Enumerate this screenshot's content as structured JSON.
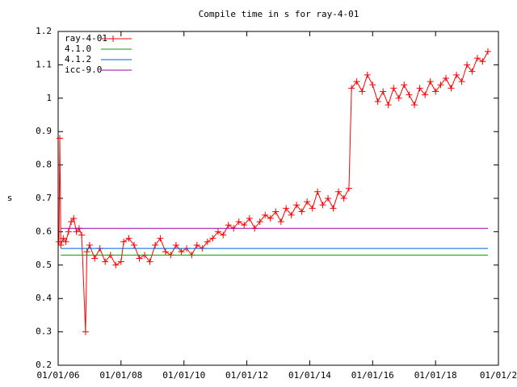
{
  "chart_data": {
    "type": "line",
    "title": "Compile time in s for ray-4-01",
    "y_label": "s",
    "xlim": [
      "2006-01-01",
      "2020-01-01"
    ],
    "xticks": [
      {
        "value": "2006-01-01",
        "label": "01/01/06"
      },
      {
        "value": "2008-01-01",
        "label": "01/01/08"
      },
      {
        "value": "2010-01-01",
        "label": "01/01/10"
      },
      {
        "value": "2012-01-01",
        "label": "01/01/12"
      },
      {
        "value": "2014-01-01",
        "label": "01/01/14"
      },
      {
        "value": "2016-01-01",
        "label": "01/01/16"
      },
      {
        "value": "2018-01-01",
        "label": "01/01/18"
      },
      {
        "value": "2020-01-01",
        "label": "01/01/2"
      }
    ],
    "ylim": [
      0.2,
      1.2
    ],
    "yticks": [
      0.2,
      0.3,
      0.4,
      0.5,
      0.6,
      0.7,
      0.8,
      0.9,
      1,
      1.1,
      1.2
    ],
    "legend": "top-left",
    "series": [
      {
        "name": "ray-4-01",
        "color": "#ff0000",
        "markers": true,
        "x": [
          "2006-01-10",
          "2006-01-20",
          "2006-02-01",
          "2006-03-01",
          "2006-04-01",
          "2006-05-01",
          "2006-06-01",
          "2006-07-01",
          "2006-08-01",
          "2006-09-01",
          "2006-10-01",
          "2006-11-15",
          "2006-12-01",
          "2007-01-01",
          "2007-03-01",
          "2007-05-01",
          "2007-07-01",
          "2007-09-01",
          "2007-11-01",
          "2008-01-01",
          "2008-02-01",
          "2008-04-01",
          "2008-06-01",
          "2008-08-01",
          "2008-10-01",
          "2008-12-01",
          "2009-02-01",
          "2009-04-01",
          "2009-06-01",
          "2009-08-01",
          "2009-10-01",
          "2009-12-01",
          "2010-02-01",
          "2010-04-01",
          "2010-06-01",
          "2010-08-01",
          "2010-10-01",
          "2010-12-01",
          "2011-02-01",
          "2011-04-01",
          "2011-06-01",
          "2011-08-01",
          "2011-10-01",
          "2011-12-01",
          "2012-02-01",
          "2012-04-01",
          "2012-06-01",
          "2012-08-01",
          "2012-10-01",
          "2012-12-01",
          "2013-02-01",
          "2013-04-01",
          "2013-06-01",
          "2013-08-01",
          "2013-10-01",
          "2013-12-01",
          "2014-02-01",
          "2014-04-01",
          "2014-06-01",
          "2014-08-01",
          "2014-10-01",
          "2014-12-01",
          "2015-02-01",
          "2015-04-01",
          "2015-05-01",
          "2015-07-01",
          "2015-09-01",
          "2015-11-01",
          "2016-01-01",
          "2016-03-01",
          "2016-05-01",
          "2016-07-01",
          "2016-09-01",
          "2016-11-01",
          "2017-01-01",
          "2017-03-01",
          "2017-05-01",
          "2017-07-01",
          "2017-09-01",
          "2017-11-01",
          "2018-01-01",
          "2018-03-01",
          "2018-05-01",
          "2018-07-01",
          "2018-09-01",
          "2018-11-01",
          "2019-01-01",
          "2019-03-01",
          "2019-05-01",
          "2019-07-01",
          "2019-09-01"
        ],
        "values": [
          0.57,
          0.88,
          0.56,
          0.58,
          0.57,
          0.6,
          0.63,
          0.64,
          0.6,
          0.61,
          0.59,
          0.3,
          0.54,
          0.56,
          0.52,
          0.55,
          0.51,
          0.53,
          0.5,
          0.51,
          0.57,
          0.58,
          0.56,
          0.52,
          0.53,
          0.51,
          0.56,
          0.58,
          0.54,
          0.53,
          0.56,
          0.54,
          0.55,
          0.53,
          0.56,
          0.55,
          0.57,
          0.58,
          0.6,
          0.59,
          0.62,
          0.61,
          0.63,
          0.62,
          0.64,
          0.61,
          0.63,
          0.65,
          0.64,
          0.66,
          0.63,
          0.67,
          0.65,
          0.68,
          0.66,
          0.69,
          0.67,
          0.72,
          0.68,
          0.7,
          0.67,
          0.72,
          0.7,
          0.73,
          1.03,
          1.05,
          1.02,
          1.07,
          1.04,
          0.99,
          1.02,
          0.98,
          1.03,
          1.0,
          1.04,
          1.01,
          0.98,
          1.03,
          1.01,
          1.05,
          1.02,
          1.04,
          1.06,
          1.03,
          1.07,
          1.05,
          1.1,
          1.08,
          1.12,
          1.11,
          1.14
        ]
      },
      {
        "name": "4.1.0",
        "color": "#00a000",
        "x": [
          "2006-02-01",
          "2019-09-01"
        ],
        "values": [
          0.53,
          0.53
        ]
      },
      {
        "name": "4.1.2",
        "color": "#0060d0",
        "x": [
          "2006-02-01",
          "2019-09-01"
        ],
        "values": [
          0.55,
          0.55
        ]
      },
      {
        "name": "icc-9.0",
        "color": "#a000a0",
        "x": [
          "2006-02-01",
          "2019-09-01"
        ],
        "values": [
          0.61,
          0.61
        ]
      }
    ]
  }
}
